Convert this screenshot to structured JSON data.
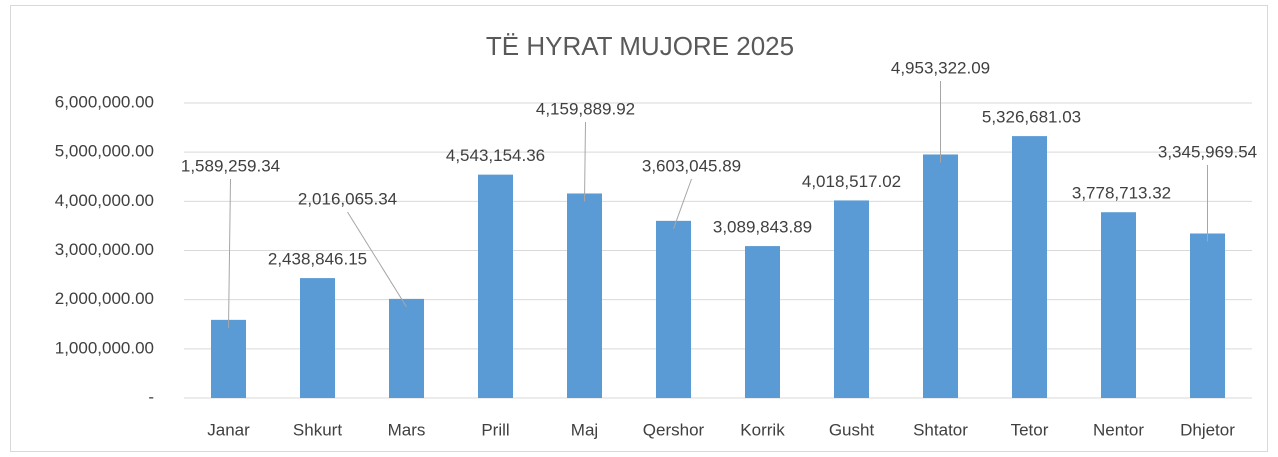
{
  "chart_data": {
    "type": "bar",
    "title": "TË HYRAT MUJORE 2025",
    "categories": [
      "Janar",
      "Shkurt",
      "Mars",
      "Prill",
      "Maj",
      "Qershor",
      "Korrik",
      "Gusht",
      "Shtator",
      "Tetor",
      "Nentor",
      "Dhjetor"
    ],
    "values": [
      1589259.34,
      2438846.15,
      2016065.34,
      4543154.36,
      4159889.92,
      3603045.89,
      3089843.89,
      4018517.02,
      4953322.09,
      5326681.03,
      3778713.32,
      3345969.54
    ],
    "value_labels": [
      "1,589,259.34",
      "2,438,846.15",
      "2,016,065.34",
      "4,543,154.36",
      "4,159,889.92",
      "3,603,045.89",
      "3,089,843.89",
      "4,018,517.02",
      "4,953,322.09",
      "5,326,681.03",
      "3,778,713.32",
      "3,345,969.54"
    ],
    "color": "#5b9bd5",
    "ylim": [
      0,
      6000000
    ],
    "yticks": [
      {
        "value": 0,
        "label": "-"
      },
      {
        "value": 1000000,
        "label": "1,000,000.00"
      },
      {
        "value": 2000000,
        "label": "2,000,000.00"
      },
      {
        "value": 3000000,
        "label": "3,000,000.00"
      },
      {
        "value": 4000000,
        "label": "4,000,000.00"
      },
      {
        "value": 5000000,
        "label": "5,000,000.00"
      },
      {
        "value": 6000000,
        "label": "6,000,000.00"
      }
    ],
    "grid": true
  }
}
